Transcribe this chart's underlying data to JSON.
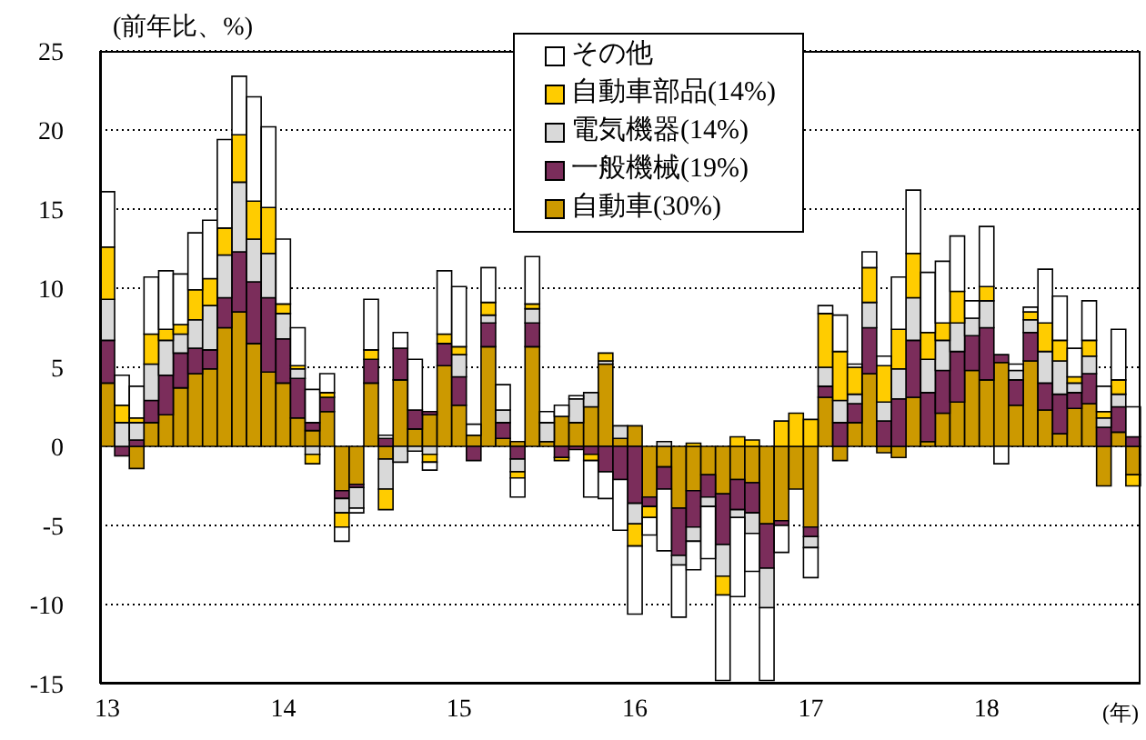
{
  "chart_data": {
    "type": "bar",
    "stacked": true,
    "ylabel": "(前年比、%)",
    "xlabel": "(年)",
    "categories": [
      "13",
      null,
      null,
      null,
      null,
      null,
      null,
      null,
      null,
      null,
      null,
      null,
      "14",
      null,
      null,
      null,
      null,
      null,
      null,
      null,
      null,
      null,
      null,
      null,
      "15",
      null,
      null,
      null,
      null,
      null,
      null,
      null,
      null,
      null,
      null,
      null,
      "16",
      null,
      null,
      null,
      null,
      null,
      null,
      null,
      null,
      null,
      null,
      null,
      "17",
      null,
      null,
      null,
      null,
      null,
      null,
      null,
      null,
      null,
      null,
      null,
      "18",
      null,
      null,
      null,
      null,
      null,
      null,
      null,
      null,
      null,
      null
    ],
    "series": [
      {
        "name": "自動車(30%)",
        "color": "#cc9900",
        "values": [
          4.0,
          0,
          -1.4,
          1.5,
          2.0,
          3.7,
          4.6,
          4.9,
          7.5,
          8.5,
          6.5,
          4.7,
          4.0,
          1.8,
          1.0,
          2.2,
          -2.8,
          -2.4,
          4.0,
          -0.8,
          4.2,
          1.1,
          2.0,
          5.1,
          2.6,
          0.7,
          6.3,
          0.5,
          0.3,
          6.3,
          0.3,
          1.9,
          1.5,
          2.5,
          5.2,
          0.5,
          1.3,
          -3.2,
          -1.3,
          -3.9,
          -2.8,
          -1.8,
          -3.0,
          -2.1,
          -2.3,
          -4.9,
          -4.7,
          -2.7,
          -5.1,
          3.1,
          -0.9,
          1.5,
          4.6,
          -0.4,
          -0.7,
          3.1,
          0.3,
          2.1,
          2.8,
          4.8,
          4.2,
          5.3,
          2.6,
          5.4,
          2.3,
          0.8,
          2.4,
          2.7,
          -2.5,
          0.9,
          -1.8
        ]
      },
      {
        "name": "一般機械(19%)",
        "color": "#7b2d5b",
        "values": [
          2.7,
          -0.6,
          0.4,
          1.4,
          2.5,
          2.2,
          1.6,
          1.2,
          1.9,
          3.8,
          3.9,
          4.7,
          2.8,
          2.5,
          0.5,
          0.9,
          -0.5,
          -0.2,
          1.5,
          0.5,
          2.0,
          1.2,
          0.2,
          1.4,
          1.8,
          -0.9,
          1.5,
          1.0,
          -0.8,
          1.5,
          0,
          -0.7,
          -0.2,
          -0.5,
          -1.6,
          -2.1,
          -3.6,
          -0.6,
          -1.4,
          -3.0,
          -2.3,
          -1.4,
          -3.2,
          -1.9,
          -1.9,
          -2.8,
          -0.3,
          0,
          -0.6,
          0.7,
          1.5,
          1.2,
          2.9,
          1.6,
          3.0,
          3.6,
          3.1,
          2.7,
          3.2,
          2.2,
          3.3,
          0.5,
          1.6,
          1.8,
          1.7,
          2.5,
          1.0,
          1.9,
          1.2,
          1.6,
          0.6
        ]
      },
      {
        "name": "電気機器(14%)",
        "color": "#d9d9d9",
        "values": [
          2.6,
          1.5,
          1.1,
          2.3,
          2.2,
          1.2,
          1.8,
          2.8,
          2.7,
          4.4,
          2.7,
          2.8,
          1.6,
          0.6,
          -0.5,
          0,
          -0.9,
          -1.3,
          0,
          -1.9,
          -1.0,
          -0.3,
          -0.5,
          0,
          1.4,
          0,
          0.5,
          0.8,
          -0.8,
          0.9,
          1.2,
          0,
          1.5,
          0.9,
          0.2,
          0.8,
          -1.3,
          0,
          0.3,
          -0.6,
          -0.9,
          -0.6,
          -2.0,
          -0.5,
          -1.3,
          -2.5,
          0,
          0,
          -0.7,
          1.2,
          1.4,
          0.6,
          1.6,
          1.2,
          1.9,
          2.7,
          2.1,
          1.9,
          1.8,
          1.1,
          1.7,
          0,
          0.6,
          0.8,
          2.0,
          2.1,
          0.6,
          1.1,
          0.6,
          0.8,
          0
        ]
      },
      {
        "name": "自動車部品(14%)",
        "color": "#ffcc00",
        "values": [
          3.3,
          1.1,
          0.3,
          1.9,
          0.7,
          0.6,
          1.9,
          1.7,
          1.7,
          3.0,
          2.4,
          2.9,
          0.6,
          0.2,
          -0.6,
          0.3,
          -0.9,
          0,
          0.6,
          -1.3,
          0,
          0,
          -0.5,
          0.6,
          0.5,
          0,
          0.8,
          0,
          -0.4,
          0.3,
          0,
          -0.2,
          0,
          -0.4,
          0.5,
          0,
          -1.4,
          -0.7,
          0,
          0,
          0.2,
          0,
          -1.2,
          0.6,
          0.4,
          0,
          1.6,
          2.1,
          1.7,
          3.4,
          3.1,
          1.7,
          2.2,
          2.3,
          2.5,
          2.8,
          1.7,
          1.1,
          2.0,
          0,
          0.9,
          0,
          0,
          0.5,
          1.8,
          1.3,
          0.4,
          1.0,
          0.4,
          0.9,
          -0.7
        ]
      },
      {
        "name": "その他",
        "color": "#ffffff",
        "values": [
          3.5,
          1.9,
          2.0,
          3.6,
          3.7,
          3.2,
          3.6,
          3.7,
          5.6,
          3.7,
          6.6,
          5.1,
          4.1,
          2.4,
          2.1,
          1.2,
          -0.9,
          -0.3,
          3.2,
          0.2,
          1.0,
          3.2,
          -0.5,
          4.0,
          3.8,
          0.7,
          2.2,
          1.6,
          -1.2,
          3.0,
          0.7,
          0.7,
          0.2,
          -2.3,
          -1.7,
          -3.2,
          -4.3,
          -1.1,
          -3.9,
          -3.3,
          -1.8,
          -3.3,
          -5.4,
          -5.0,
          -2.4,
          -4.6,
          -1.7,
          0,
          -1.9,
          0.5,
          2.3,
          0.2,
          1.0,
          0.6,
          3.3,
          4.0,
          3.8,
          3.9,
          3.5,
          1.1,
          3.8,
          -1.1,
          0.4,
          0.3,
          3.4,
          2.8,
          1.8,
          2.5,
          1.6,
          3.2,
          1.9
        ]
      }
    ],
    "ylim": [
      -15,
      25
    ],
    "yticks": [
      -15,
      -10,
      -5,
      0,
      5,
      10,
      15,
      20,
      25
    ],
    "grid": "y",
    "legend": "top"
  }
}
